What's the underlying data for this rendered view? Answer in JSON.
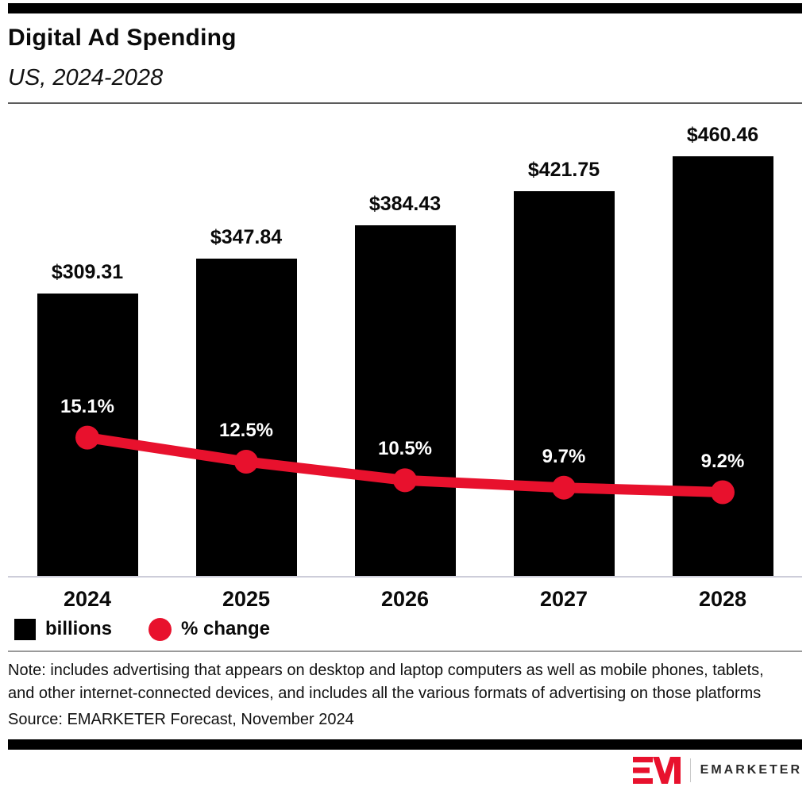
{
  "header": {
    "title": "Digital Ad Spending",
    "subtitle": "US, 2024-2028"
  },
  "chart_data": {
    "type": "bar",
    "title": "Digital Ad Spending",
    "subtitle": "US, 2024-2028",
    "categories": [
      "2024",
      "2025",
      "2026",
      "2027",
      "2028"
    ],
    "series": [
      {
        "name": "billions",
        "type": "bar",
        "values": [
          309.31,
          347.84,
          384.43,
          421.75,
          460.46
        ],
        "labels": [
          "$309.31",
          "$347.84",
          "$384.43",
          "$421.75",
          "$460.46"
        ],
        "color": "#000000",
        "axis_max": 508
      },
      {
        "name": "% change",
        "type": "line",
        "values": [
          15.1,
          12.5,
          10.5,
          9.7,
          9.2
        ],
        "labels": [
          "15.1%",
          "12.5%",
          "10.5%",
          "9.7%",
          "9.2%"
        ],
        "color": "#e8112d",
        "axis_max": 50
      }
    ],
    "xlabel": "",
    "ylabel": "",
    "grid": false,
    "legend_position": "bottom",
    "axes_hidden": true
  },
  "legend": {
    "items": [
      {
        "label": "billions",
        "color": "#000000",
        "shape": "square"
      },
      {
        "label": "% change",
        "color": "#e8112d",
        "shape": "circle"
      }
    ]
  },
  "footnote": {
    "note": "Note: includes advertising that appears on desktop and laptop computers as well as mobile phones, tablets, and other internet-connected devices, and includes all the various formats of advertising on those platforms",
    "source": "Source: EMARKETER Forecast, November 2024"
  },
  "footer": {
    "brand": "EMARKETER"
  },
  "colors": {
    "accent_red": "#e8112d",
    "bar_black": "#000000",
    "axis_line": "#cdcdd9"
  }
}
